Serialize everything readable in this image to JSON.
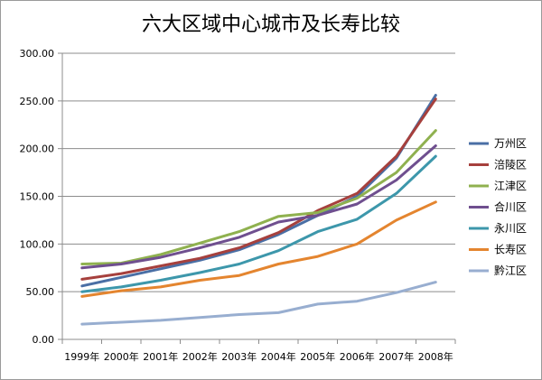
{
  "chart_data": {
    "type": "line",
    "title": "六大区域中心城市及长寿比较",
    "categories": [
      "1999年",
      "2000年",
      "2001年",
      "2002年",
      "2003年",
      "2004年",
      "2005年",
      "2006年",
      "2007年",
      "2008年"
    ],
    "ylim": [
      0,
      300
    ],
    "yticks": [
      "0.00",
      "50.00",
      "100.00",
      "150.00",
      "200.00",
      "250.00",
      "300.00"
    ],
    "grid": true,
    "legend_position": "right",
    "series": [
      {
        "name": "万州区",
        "color": "#4a6fa5",
        "values": [
          56,
          65,
          74,
          83,
          94,
          110,
          130,
          150,
          190,
          256
        ]
      },
      {
        "name": "涪陵区",
        "color": "#a6403d",
        "values": [
          63,
          69,
          77,
          85,
          96,
          112,
          135,
          153,
          192,
          252
        ]
      },
      {
        "name": "江津区",
        "color": "#8fb14f",
        "values": [
          79,
          80,
          89,
          101,
          113,
          129,
          133,
          148,
          175,
          219
        ]
      },
      {
        "name": "合川区",
        "color": "#6f4f8f",
        "values": [
          75,
          79,
          86,
          96,
          107,
          123,
          130,
          142,
          167,
          203
        ]
      },
      {
        "name": "永川区",
        "color": "#3d97ab",
        "values": [
          50,
          55,
          62,
          70,
          79,
          93,
          113,
          126,
          153,
          192
        ]
      },
      {
        "name": "长寿区",
        "color": "#e4852f",
        "values": [
          45,
          51,
          55,
          62,
          67,
          79,
          87,
          100,
          125,
          144
        ]
      },
      {
        "name": "黔江区",
        "color": "#98aed0",
        "values": [
          16,
          18,
          20,
          23,
          26,
          28,
          37,
          40,
          49,
          60
        ]
      }
    ]
  }
}
